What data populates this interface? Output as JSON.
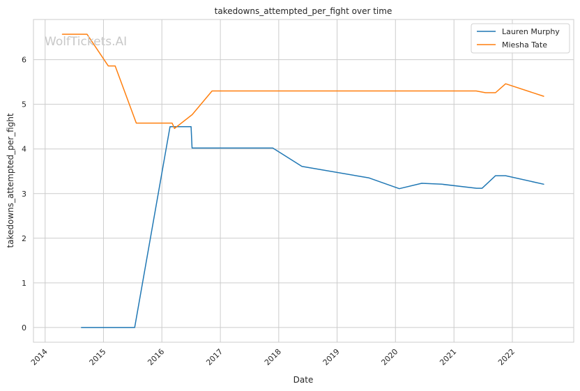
{
  "chart_data": {
    "type": "line",
    "title": "takedowns_attempted_per_fight over time",
    "xlabel": "Date",
    "ylabel": "takedowns_attempted_per_fight",
    "watermark": "WolfTickets.AI",
    "xlim": [
      "2013-10-20",
      "2023-01-20"
    ],
    "ylim": [
      -0.33,
      6.9
    ],
    "x_ticks": [
      "2014",
      "2015",
      "2016",
      "2017",
      "2018",
      "2019",
      "2020",
      "2021",
      "2022"
    ],
    "y_ticks": [
      "0",
      "1",
      "2",
      "3",
      "4",
      "5",
      "6"
    ],
    "grid": true,
    "legend_position": "top-right",
    "colors": {
      "Lauren Murphy": "#1f77b4",
      "Miesha Tate": "#ff7f0e"
    },
    "series": [
      {
        "name": "Lauren Murphy",
        "x": [
          "2014-08-16",
          "2015-07-15",
          "2016-02-21",
          "2016-07-02",
          "2016-07-08",
          "2017-11-25",
          "2018-05-26",
          "2019-07-20",
          "2020-01-25",
          "2020-06-13",
          "2020-10-17",
          "2021-05-22",
          "2021-06-26",
          "2021-09-18",
          "2021-11-20",
          "2022-07-16"
        ],
        "y": [
          0,
          0,
          4.5,
          4.5,
          4.02,
          4.02,
          3.61,
          3.35,
          3.11,
          3.23,
          3.21,
          3.12,
          3.12,
          3.4,
          3.4,
          3.21
        ]
      },
      {
        "name": "Miesha Tate",
        "x": [
          "2014-04-19",
          "2014-09-20",
          "2015-01-31",
          "2015-03-15",
          "2015-07-25",
          "2016-03-05",
          "2016-03-20",
          "2016-07-09",
          "2016-11-10",
          "2021-05-20",
          "2021-07-17",
          "2021-09-18",
          "2021-11-20",
          "2022-07-16"
        ],
        "y": [
          6.57,
          6.57,
          5.86,
          5.86,
          4.58,
          4.58,
          4.46,
          4.77,
          5.3,
          5.3,
          5.26,
          5.26,
          5.46,
          5.18
        ]
      }
    ]
  }
}
